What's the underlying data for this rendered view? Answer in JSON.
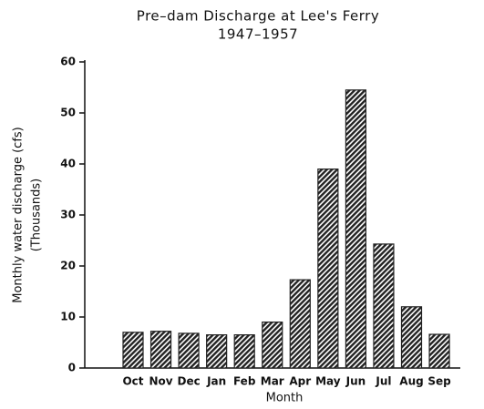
{
  "chart_data": {
    "type": "bar",
    "title": "Pre–dam Discharge at Lee's Ferry",
    "subtitle": "1947–1957",
    "ylabel": [
      "Monthly water discharge (cfs)",
      "(Thousands)"
    ],
    "xlabel": "Month",
    "categories": [
      "Oct",
      "Nov",
      "Dec",
      "Jan",
      "Feb",
      "Mar",
      "Apr",
      "May",
      "Jun",
      "Jul",
      "Aug",
      "Sep"
    ],
    "values": [
      7,
      7.2,
      6.8,
      6.5,
      6.5,
      9,
      17.3,
      39,
      54.5,
      24.3,
      12,
      6.6
    ],
    "color": "#222222",
    "ylim": [
      0,
      60
    ],
    "yticks": [
      0,
      10,
      20,
      30,
      40,
      50,
      60
    ]
  }
}
